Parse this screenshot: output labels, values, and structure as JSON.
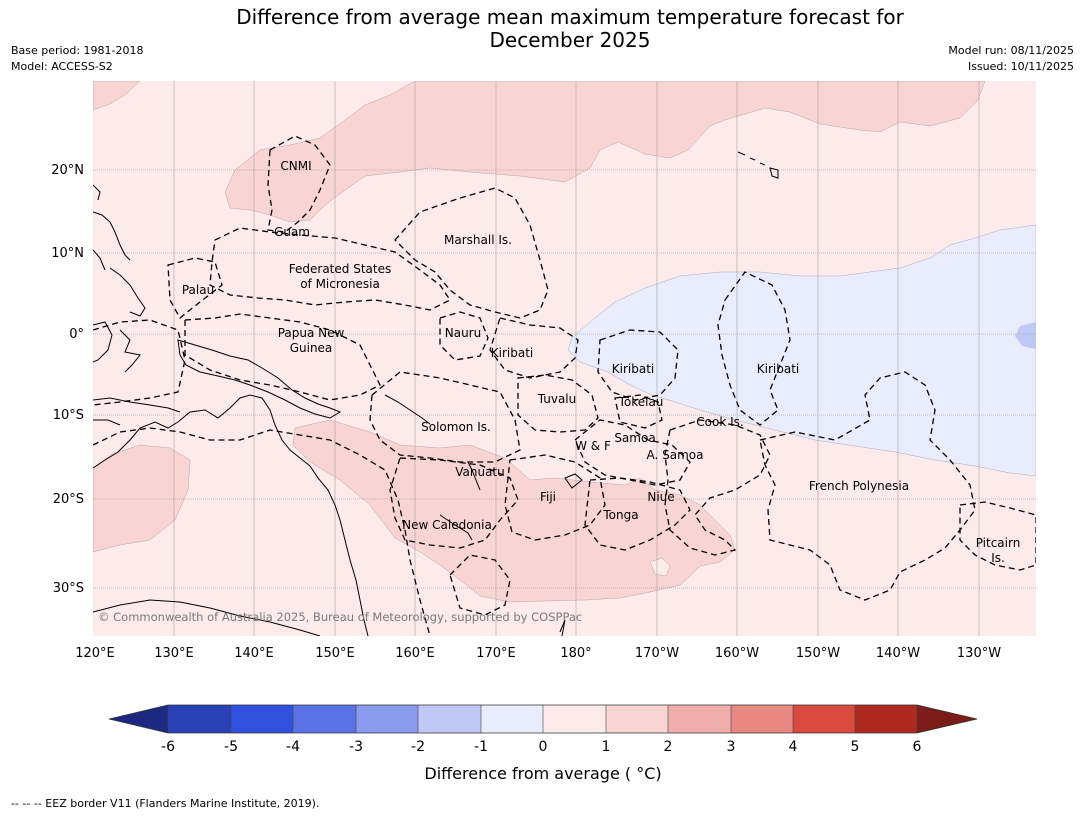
{
  "title": {
    "line1": "Difference from average mean maximum temperature forecast for",
    "line2": "December 2025"
  },
  "meta": {
    "base_period": "Base period: 1981-2018",
    "model": "Model: ACCESS-S2",
    "model_run": "Model run: 08/11/2025",
    "issued": "Issued: 10/11/2025"
  },
  "map": {
    "lat_labels": [
      "20°N",
      "10°N",
      "0°",
      "10°S",
      "20°S",
      "30°S"
    ],
    "lon_labels": [
      "120°E",
      "130°E",
      "140°E",
      "150°E",
      "160°E",
      "170°E",
      "180°",
      "170°W",
      "160°W",
      "150°W",
      "140°W",
      "130°W"
    ],
    "places": {
      "cnmi": "CNMI",
      "guam": "Guam",
      "marshall": "Marshall Is.",
      "fsm1": "Federated States",
      "fsm2": "of Micronesia",
      "palau": "Palau",
      "png1": "Papua New",
      "png2": "Guinea",
      "nauru": "Nauru",
      "kiribati_w": "Kiribati",
      "kiribati_c": "Kiribati",
      "kiribati_e": "Kiribati",
      "tuvalu": "Tuvalu",
      "tokelau": "Tokelau",
      "cook": "Cook Is.",
      "solomon": "Solomon Is.",
      "wf": "W & F",
      "samoa": "Samoa",
      "asamoa": "A. Samoa",
      "vanuatu": "Vanuatu",
      "fiji": "Fiji",
      "niue": "Niue",
      "tonga": "Tonga",
      "newcal": "New Caledonia",
      "frpoly": "French Polynesia",
      "pitcairn1": "Pitcairn",
      "pitcairn2": "Is."
    },
    "copyright": "© Commonwealth of Australia 2025, Bureau of Meteorology, supported by COSPPac"
  },
  "colorbar": {
    "tick_labels": [
      "-6",
      "-5",
      "-4",
      "-3",
      "-2",
      "-1",
      "0",
      "1",
      "2",
      "3",
      "4",
      "5",
      "6"
    ],
    "colors": [
      "#1b2a80",
      "#2a40b5",
      "#3050e0",
      "#5b72e6",
      "#8a9aec",
      "#c0c8f5",
      "#e8ecfc",
      "#fcebea",
      "#f8d4d2",
      "#efaeab",
      "#e78883",
      "#da4a3f",
      "#ac2a20",
      "#7b1c18"
    ],
    "label": "Difference from average ( °C)"
  },
  "footer": "--  --  -- EEZ border V11 (Flanders Marine Institute, 2019)."
}
